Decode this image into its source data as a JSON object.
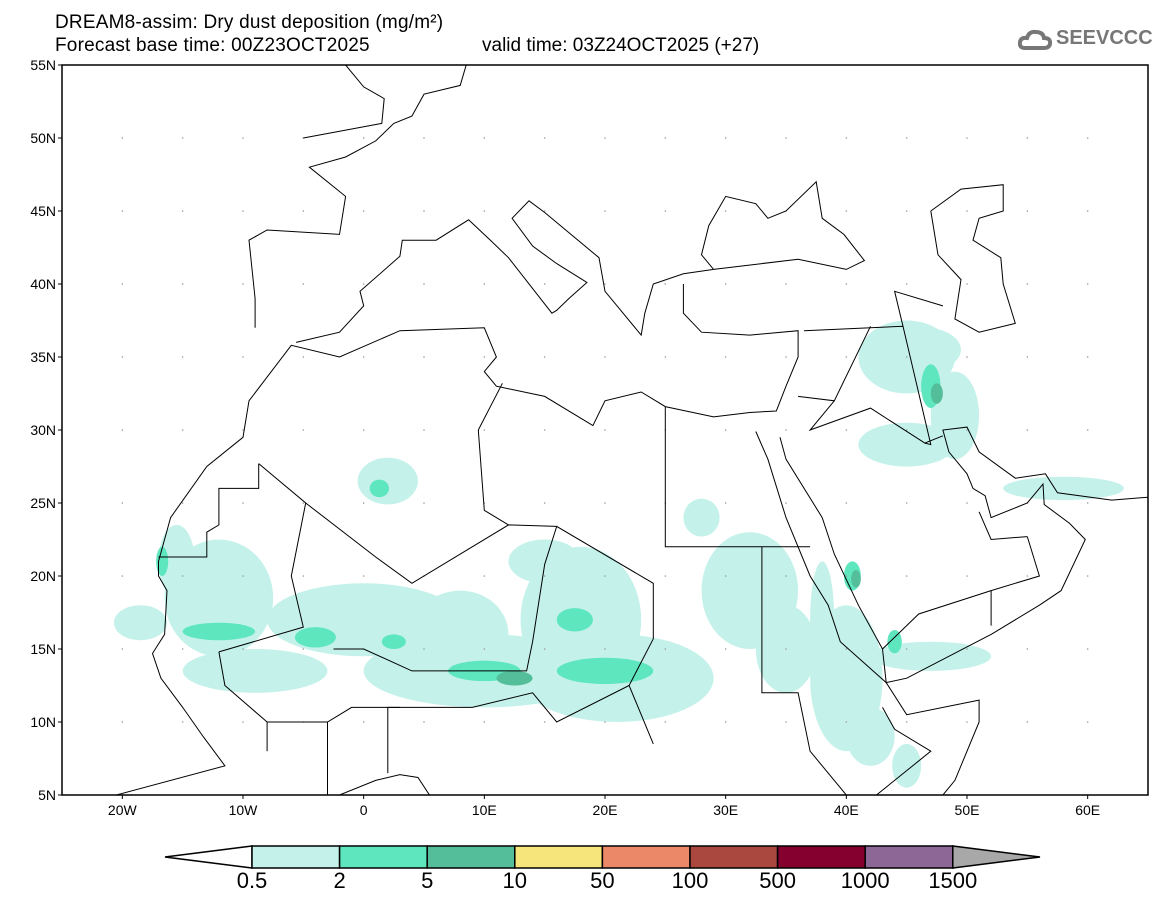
{
  "title": {
    "line1": "DREAM8-assim: Dry dust deposition (mg/m²)",
    "base_time": "Forecast base time: 00Z23OCT2025",
    "valid_time": "valid time: 03Z24OCT2025 (+27)"
  },
  "logo": {
    "text": "SEEVCCC"
  },
  "axes": {
    "lat_labels": [
      "55N",
      "50N",
      "45N",
      "40N",
      "35N",
      "30N",
      "25N",
      "20N",
      "15N",
      "10N",
      "5N"
    ],
    "lat_values": [
      55,
      50,
      45,
      40,
      35,
      30,
      25,
      20,
      15,
      10,
      5
    ],
    "lon_labels": [
      "20W",
      "10W",
      "0",
      "10E",
      "20E",
      "30E",
      "40E",
      "50E",
      "60E"
    ],
    "lon_values": [
      -20,
      -10,
      0,
      10,
      20,
      30,
      40,
      50,
      60
    ],
    "lon_range": [
      -25,
      65
    ],
    "lat_range": [
      5,
      55
    ]
  },
  "colorbar": {
    "labels": [
      "0.5",
      "2",
      "5",
      "10",
      "50",
      "100",
      "500",
      "1000",
      "1500"
    ],
    "colors": [
      "#c4f2ea",
      "#5ee6bf",
      "#54bd9a",
      "#f5e57a",
      "#ea8868",
      "#aa4840",
      "#85002e",
      "#8d6897"
    ],
    "low_color": "#ffffff",
    "high_color": "#a8a8a8"
  }
}
